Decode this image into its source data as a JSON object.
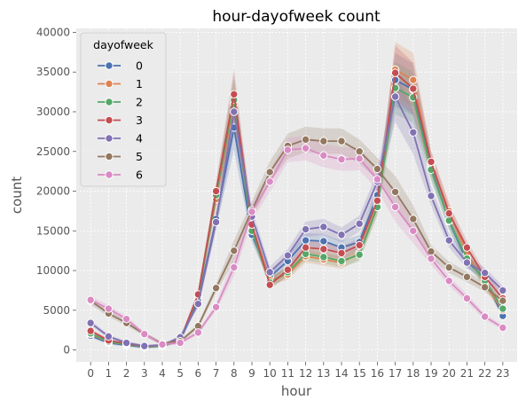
{
  "chart_data": {
    "type": "line",
    "title": "hour-dayofweek count",
    "xlabel": "hour",
    "ylabel": "count",
    "x": [
      0,
      1,
      2,
      3,
      4,
      5,
      6,
      7,
      8,
      9,
      10,
      11,
      12,
      13,
      14,
      15,
      16,
      17,
      18,
      19,
      20,
      21,
      22,
      23
    ],
    "ylim": [
      -1500,
      40500
    ],
    "xlim": [
      -0.8,
      23.8
    ],
    "yticks": [
      0,
      5000,
      10000,
      15000,
      20000,
      25000,
      30000,
      35000,
      40000
    ],
    "grid": true,
    "legend": {
      "title": "dayofweek",
      "placement": "top-left"
    },
    "series": [
      {
        "name": "0",
        "color": "#4c72b0",
        "values": [
          1800,
          900,
          600,
          350,
          500,
          1200,
          6200,
          16500,
          28000,
          14500,
          9200,
          11200,
          13800,
          13700,
          12900,
          13600,
          19500,
          34000,
          32800,
          23000,
          16200,
          11200,
          9000,
          4300
        ]
      },
      {
        "name": "1",
        "color": "#dd8452",
        "values": [
          2000,
          1000,
          700,
          400,
          500,
          1300,
          6800,
          19000,
          31000,
          15500,
          8800,
          9500,
          11800,
          11400,
          11000,
          12200,
          18200,
          35300,
          34000,
          23500,
          17500,
          12200,
          8300,
          5000
        ]
      },
      {
        "name": "2",
        "color": "#55a868",
        "values": [
          2100,
          1050,
          700,
          400,
          500,
          1300,
          6800,
          19500,
          31500,
          15000,
          8500,
          9800,
          12100,
          11700,
          11200,
          12000,
          18000,
          33000,
          31800,
          22700,
          16300,
          11500,
          8700,
          5200
        ]
      },
      {
        "name": "3",
        "color": "#c44e52",
        "values": [
          2400,
          1200,
          800,
          450,
          600,
          1300,
          7000,
          20000,
          32200,
          15800,
          8200,
          10100,
          12900,
          12700,
          12200,
          13200,
          18800,
          34900,
          32900,
          23700,
          17200,
          12900,
          9200,
          6500
        ]
      },
      {
        "name": "4",
        "color": "#8172b3",
        "values": [
          3400,
          1700,
          900,
          500,
          600,
          1600,
          5800,
          16100,
          30000,
          16800,
          9800,
          11900,
          15200,
          15500,
          14500,
          15900,
          21200,
          31900,
          27400,
          19400,
          13800,
          11000,
          9700,
          7500
        ]
      },
      {
        "name": "5",
        "color": "#937860",
        "values": [
          6200,
          4600,
          3400,
          2000,
          800,
          1100,
          3000,
          7800,
          12500,
          17600,
          22400,
          25700,
          26500,
          26300,
          26300,
          25000,
          22800,
          19900,
          16500,
          12400,
          10400,
          9200,
          7900,
          6200
        ]
      },
      {
        "name": "6",
        "color": "#da8bc3",
        "values": [
          6300,
          5200,
          3900,
          2000,
          700,
          900,
          2200,
          5400,
          10400,
          17400,
          21200,
          25200,
          25400,
          24500,
          24000,
          24100,
          21500,
          18000,
          15000,
          11500,
          8700,
          6500,
          4200,
          2800
        ]
      }
    ]
  }
}
